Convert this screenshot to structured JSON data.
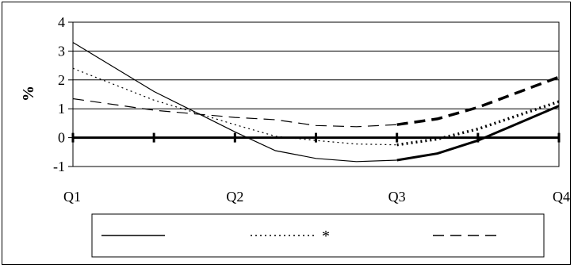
{
  "chart_data": {
    "type": "line",
    "categories": [
      "Q1",
      "Q2",
      "Q3",
      "Q4"
    ],
    "ylabel": "%",
    "ylim": [
      -1,
      4
    ],
    "yticks": [
      -1,
      0,
      1,
      2,
      3,
      4
    ],
    "grid": true,
    "legend_placement": "bottom",
    "series": [
      {
        "name": "",
        "style": "solid",
        "x": [
          0,
          0.5,
          1.0,
          1.25,
          1.5,
          1.75,
          2.0,
          2.25,
          2.5,
          3.0
        ],
        "values": [
          3.3,
          1.6,
          0.2,
          -0.45,
          -0.72,
          -0.83,
          -0.78,
          -0.55,
          -0.1,
          1.1
        ]
      },
      {
        "name": "*",
        "style": "dotted",
        "x": [
          0,
          0.5,
          1.0,
          1.25,
          1.5,
          1.75,
          2.0,
          2.25,
          2.5,
          3.0
        ],
        "values": [
          2.4,
          1.3,
          0.45,
          0.05,
          -0.1,
          -0.22,
          -0.25,
          -0.05,
          0.3,
          1.25
        ]
      },
      {
        "name": "",
        "style": "dashed",
        "x": [
          0,
          0.5,
          1.0,
          1.25,
          1.5,
          1.75,
          2.0,
          2.25,
          2.5,
          3.0
        ],
        "values": [
          1.35,
          0.95,
          0.7,
          0.62,
          0.42,
          0.38,
          0.45,
          0.65,
          1.05,
          2.1
        ]
      }
    ]
  }
}
